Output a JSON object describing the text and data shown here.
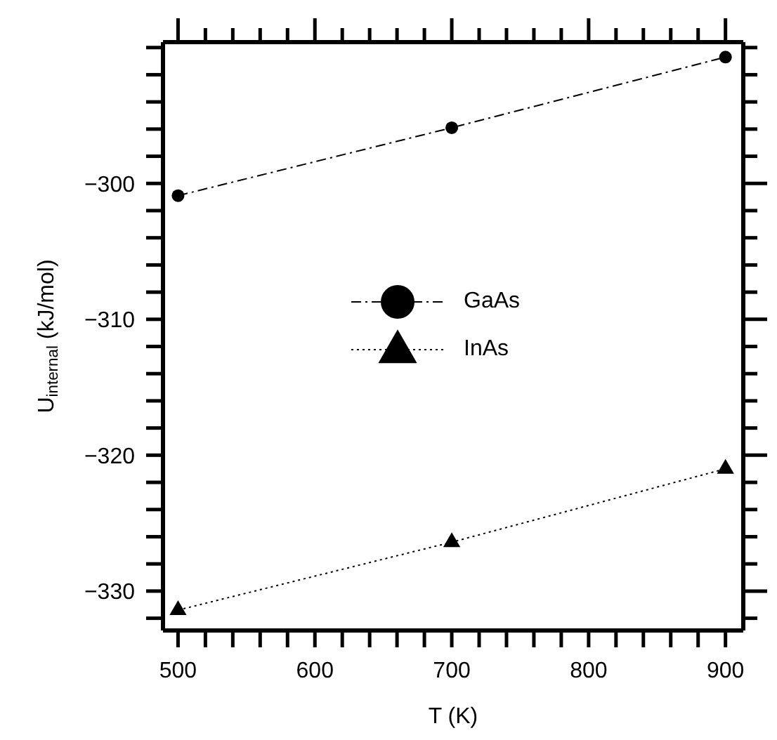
{
  "chart_data": {
    "type": "line",
    "xlabel": "T (K)",
    "ylabel": "U$_{internal}$ (kJ/mol)",
    "x": [
      500,
      700,
      900
    ],
    "series": [
      {
        "name": "GaAs",
        "color": "#000000",
        "values": [
          -300.9,
          -295.9,
          -290.7
        ],
        "marker": "circle",
        "line_style": "dashed"
      },
      {
        "name": "InAs",
        "color": "#000000",
        "values": [
          -331.4,
          -326.4,
          -321.0
        ],
        "marker": "triangle",
        "line_style": "dotted"
      }
    ],
    "xlim": [
      489,
      913
    ],
    "ylim": [
      -332.9,
      -289.6
    ],
    "xticks": [
      500,
      {
        "value": 520,
        "label": null
      },
      {
        "value": 540,
        "label": null
      },
      {
        "value": 560,
        "label": null
      },
      {
        "value": 580,
        "label": null
      },
      600,
      {
        "value": 620,
        "label": null
      },
      {
        "value": 640,
        "label": null
      },
      {
        "value": 660,
        "label": null
      },
      {
        "value": 680,
        "label": null
      },
      700,
      {
        "value": 720,
        "label": null
      },
      {
        "value": 740,
        "label": null
      },
      {
        "value": 760,
        "label": null
      },
      {
        "value": 780,
        "label": null
      },
      800,
      {
        "value": 820,
        "label": null
      },
      {
        "value": 840,
        "label": null
      },
      {
        "value": 860,
        "label": null
      },
      {
        "value": 880,
        "label": null
      },
      900
    ],
    "yticks": [
      {
        "value": -332,
        "label": null
      },
      {
        "value": -330,
        "label": "−330"
      },
      {
        "value": -328,
        "label": null
      },
      {
        "value": -326,
        "label": null
      },
      {
        "value": -324,
        "label": null
      },
      {
        "value": -322,
        "label": null
      },
      {
        "value": -320,
        "label": "−320"
      },
      {
        "value": -318,
        "label": null
      },
      {
        "value": -316,
        "label": null
      },
      {
        "value": -314,
        "label": null
      },
      {
        "value": -312,
        "label": null
      },
      {
        "value": -310,
        "label": "−310"
      },
      {
        "value": -308,
        "label": null
      },
      {
        "value": -306,
        "label": null
      },
      {
        "value": -304,
        "label": null
      },
      {
        "value": -302,
        "label": null
      },
      {
        "value": -300,
        "label": "−300"
      },
      {
        "value": -298,
        "label": null
      },
      {
        "value": -296,
        "label": null
      },
      {
        "value": -294,
        "label": null
      },
      {
        "value": -292,
        "label": null
      },
      {
        "value": -290,
        "label": null
      }
    ],
    "legend": "center"
  }
}
